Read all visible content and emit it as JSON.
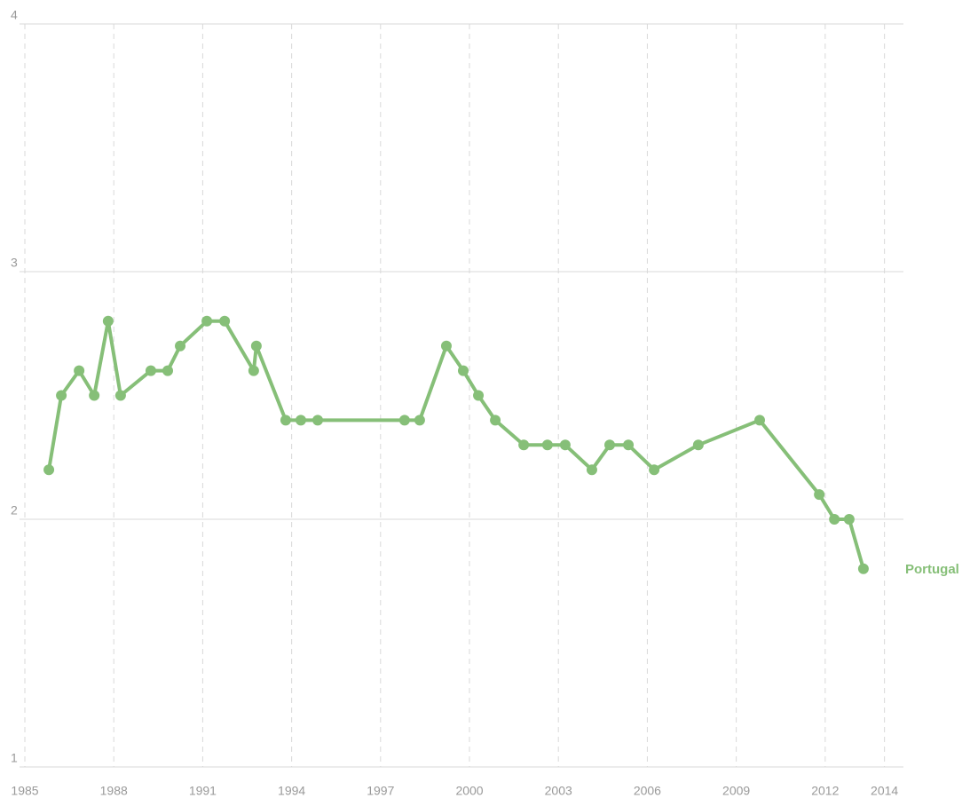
{
  "chart_data": {
    "type": "line",
    "series": [
      {
        "name": "Portugal",
        "color": "#86bf78",
        "x": [
          1985.81,
          1986.23,
          1986.83,
          1987.34,
          1987.81,
          1988.23,
          1989.25,
          1989.82,
          1990.24,
          1991.14,
          1991.74,
          1992.72,
          1992.81,
          1993.8,
          1994.31,
          1994.88,
          1997.81,
          1998.32,
          1999.22,
          1999.79,
          2000.3,
          2000.87,
          2001.83,
          2002.63,
          2003.23,
          2004.13,
          2004.73,
          2005.36,
          2006.23,
          2007.72,
          2009.79,
          2011.8,
          2012.31,
          2012.81,
          2013.29
        ],
        "values": [
          2.2,
          2.5,
          2.6,
          2.5,
          2.8,
          2.5,
          2.6,
          2.6,
          2.7,
          2.8,
          2.8,
          2.6,
          2.7,
          2.4,
          2.4,
          2.4,
          2.4,
          2.4,
          2.7,
          2.6,
          2.5,
          2.4,
          2.3,
          2.3,
          2.3,
          2.2,
          2.3,
          2.3,
          2.2,
          2.3,
          2.4,
          2.1,
          2.0,
          2.0,
          1.8
        ]
      }
    ],
    "xlim": [
      1984.82,
      2014.64
    ],
    "xticks": [
      1985,
      1988,
      1991,
      1994,
      1997,
      2000,
      2003,
      2006,
      2009,
      2012,
      2014
    ],
    "ylim": [
      1,
      4
    ],
    "yticks": [
      1,
      2,
      3,
      4
    ],
    "grid": true
  }
}
